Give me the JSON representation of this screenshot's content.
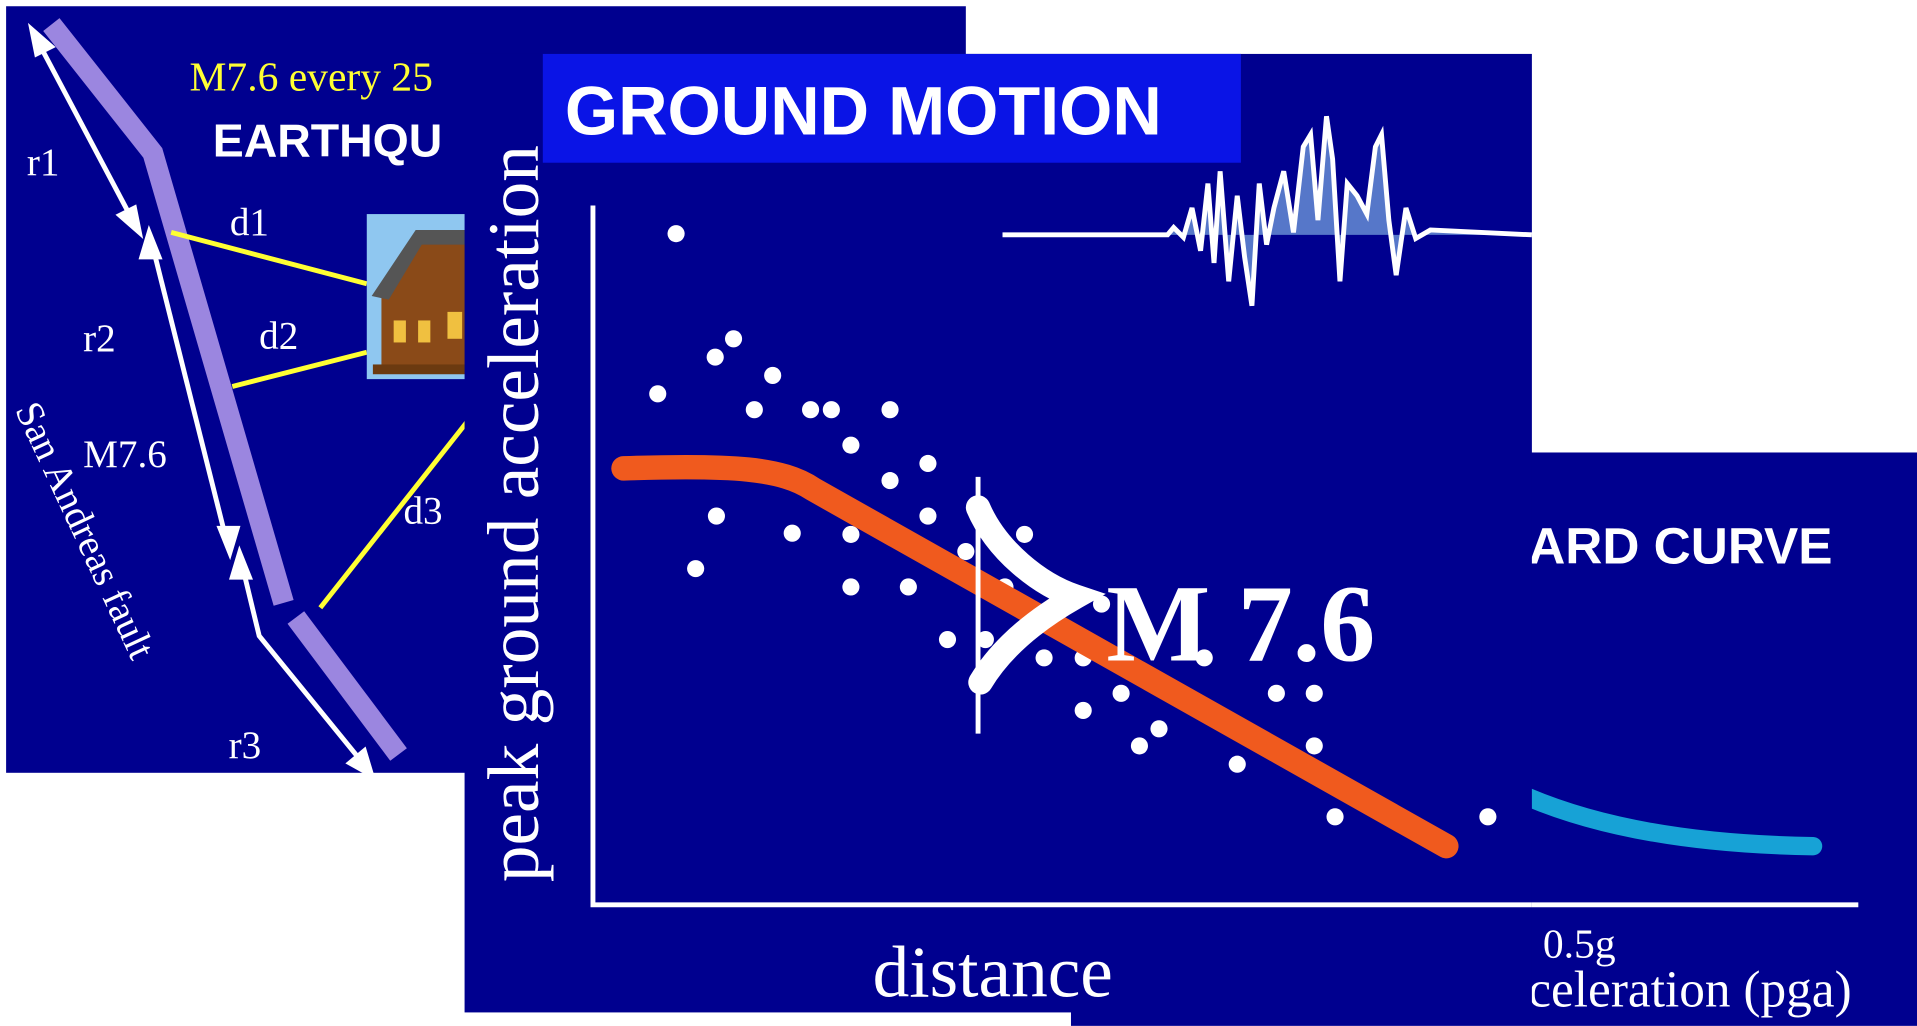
{
  "left_slide": {
    "subtitle": "M7.6 every 25",
    "title": "EARTHQU",
    "labels": {
      "r1": "r1",
      "d1": "d1",
      "r2": "r2",
      "d2": "d2",
      "magnitude": "M7.6",
      "d3": "d3",
      "r3": "r3",
      "fault": "San Andreas fault"
    }
  },
  "center_slide": {
    "title": "GROUND MOTION",
    "y_axis_label": "peak ground acceleration",
    "x_axis_label": "distance",
    "annotation": "M 7.6"
  },
  "right_slide": {
    "title": "ARD CURVE",
    "x_tick_label": "0.5g",
    "x_axis_label": "celeration (pga)"
  }
}
